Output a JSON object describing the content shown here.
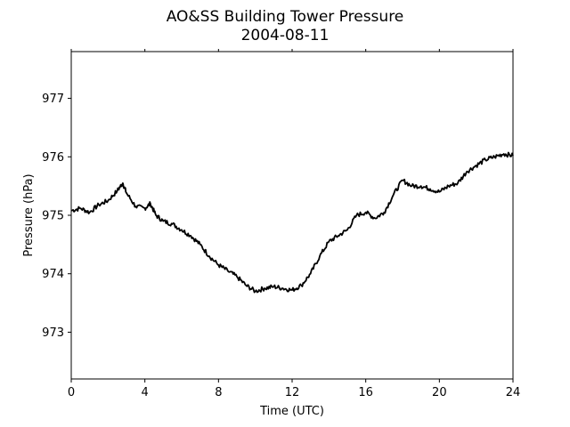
{
  "chart_data": {
    "type": "line",
    "title": "AO&SS Building Tower Pressure",
    "subtitle": "2004-08-11",
    "xlabel": "Time (UTC)",
    "ylabel": "Pressure (hPa)",
    "xlim": [
      0,
      24
    ],
    "ylim": [
      972.2,
      977.8
    ],
    "xticks": [
      0,
      4,
      8,
      12,
      16,
      20,
      24
    ],
    "yticks": [
      973,
      974,
      975,
      976,
      977
    ],
    "grid": false,
    "legend": "none",
    "series": [
      {
        "color": "#000000",
        "x": [
          0,
          0.5,
          1,
          1.5,
          2,
          2.5,
          2.8,
          3,
          3.5,
          4,
          4.3,
          4.6,
          5,
          5.5,
          6,
          6.5,
          7,
          7.5,
          8,
          8.5,
          9,
          9.5,
          10,
          10.5,
          11,
          11.5,
          12,
          12.5,
          13,
          13.5,
          14,
          14.5,
          15,
          15.5,
          16,
          16.5,
          17,
          17.5,
          18,
          18.5,
          19,
          19.5,
          20,
          20.5,
          21,
          21.5,
          22,
          22.5,
          23,
          23.5,
          24
        ],
        "y": [
          975.08,
          975.12,
          975.05,
          975.18,
          975.25,
          975.42,
          975.55,
          975.38,
          975.15,
          975.12,
          975.2,
          975.0,
          974.9,
          974.85,
          974.75,
          974.65,
          974.5,
          974.3,
          974.15,
          974.05,
          973.95,
          973.8,
          973.7,
          973.75,
          973.78,
          973.75,
          973.72,
          973.8,
          974.0,
          974.3,
          974.55,
          974.65,
          974.75,
          975.0,
          975.05,
          974.95,
          975.05,
          975.35,
          975.6,
          975.5,
          975.5,
          975.45,
          975.4,
          975.5,
          975.55,
          975.75,
          975.85,
          975.95,
          976.0,
          976.05,
          976.02
        ]
      }
    ]
  }
}
